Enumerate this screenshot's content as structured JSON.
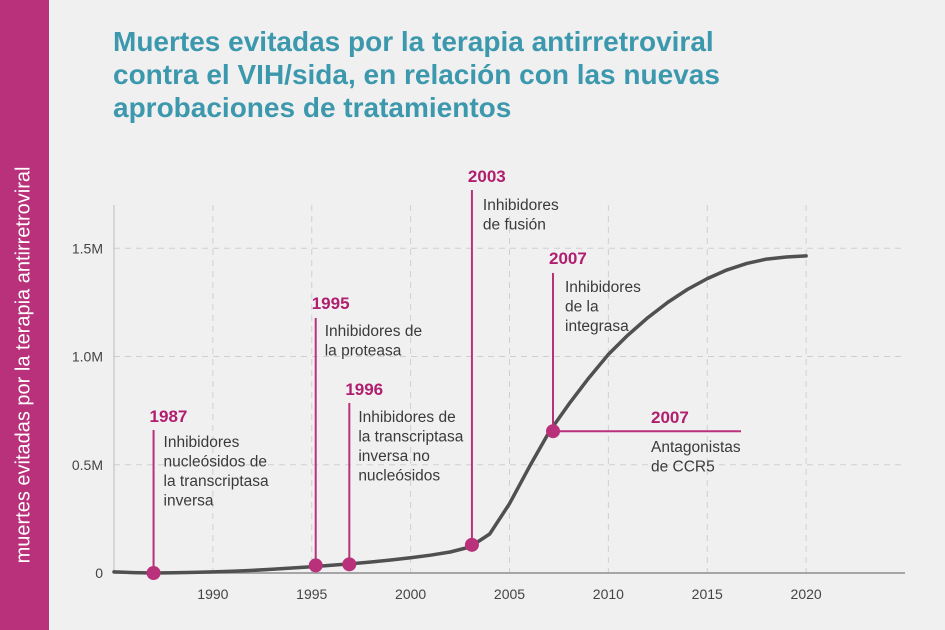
{
  "chart_data": {
    "type": "line",
    "title": "Muertes evitadas por la terapia antirretroviral contra el VIH/sida, en relación con las nuevas aprobaciones de tratamientos",
    "ylabel": "muertes evitadas por la terapia antirretroviral",
    "xlabel": "",
    "xlim": [
      1985,
      2025
    ],
    "ylim": [
      0,
      1700000
    ],
    "grid": "dashed",
    "x_ticks": [
      "1990",
      "1995",
      "2000",
      "2005",
      "2010",
      "2015",
      "2020"
    ],
    "y_ticks": [
      {
        "value": 0,
        "label": "0"
      },
      {
        "value": 500000,
        "label": "0.5M"
      },
      {
        "value": 1000000,
        "label": "1.0M"
      },
      {
        "value": 1500000,
        "label": "1.5M"
      }
    ],
    "series": [
      {
        "color": "#505050",
        "x": [
          1985,
          1986,
          1987,
          1988,
          1989,
          1990,
          1991,
          1992,
          1993,
          1994,
          1995,
          1996,
          1997,
          1998,
          1999,
          2000,
          2001,
          2002,
          2003,
          2004,
          2005,
          2006,
          2007,
          2008,
          2009,
          2010,
          2011,
          2012,
          2013,
          2014,
          2015,
          2016,
          2017,
          2018,
          2019,
          2020
        ],
        "y": [
          5000,
          2000,
          0,
          1500,
          3000,
          5000,
          8000,
          12000,
          17000,
          23000,
          29000,
          36000,
          43000,
          51000,
          60000,
          70000,
          82000,
          97000,
          120000,
          180000,
          320000,
          490000,
          650000,
          780000,
          900000,
          1010000,
          1100000,
          1180000,
          1250000,
          1310000,
          1360000,
          1400000,
          1430000,
          1450000,
          1460000,
          1465000
        ]
      }
    ],
    "annotations": [
      {
        "year": "1987",
        "x": 1987,
        "y": 0,
        "text": [
          "Inhibidores",
          "nucleósidos de",
          "la transcriptasa",
          "inversa"
        ]
      },
      {
        "year": "1995",
        "x": 1995.2,
        "y": 35000,
        "text": [
          "Inhibidores de",
          "la proteasa"
        ]
      },
      {
        "year": "1996",
        "x": 1996.9,
        "y": 40000,
        "text": [
          "Inhibidores de",
          "la transcriptasa",
          "inversa no",
          "nucleósidos"
        ]
      },
      {
        "year": "2003",
        "x": 2003.1,
        "y": 130000,
        "text": [
          "Inhibidores",
          "de fusión"
        ]
      },
      {
        "year": "2007",
        "x": 2007.2,
        "y": 655000,
        "text": [
          "Inhibidores",
          "de la",
          "integrasa"
        ]
      },
      {
        "year": "2007",
        "x": 2007.2,
        "y": 655000,
        "text": [
          "Antagonistas",
          "de CCR5"
        ]
      }
    ],
    "colors": {
      "accent": "#b8317a",
      "marker": "#b8317a",
      "title": "#3c98ac",
      "line": "#505050"
    }
  }
}
